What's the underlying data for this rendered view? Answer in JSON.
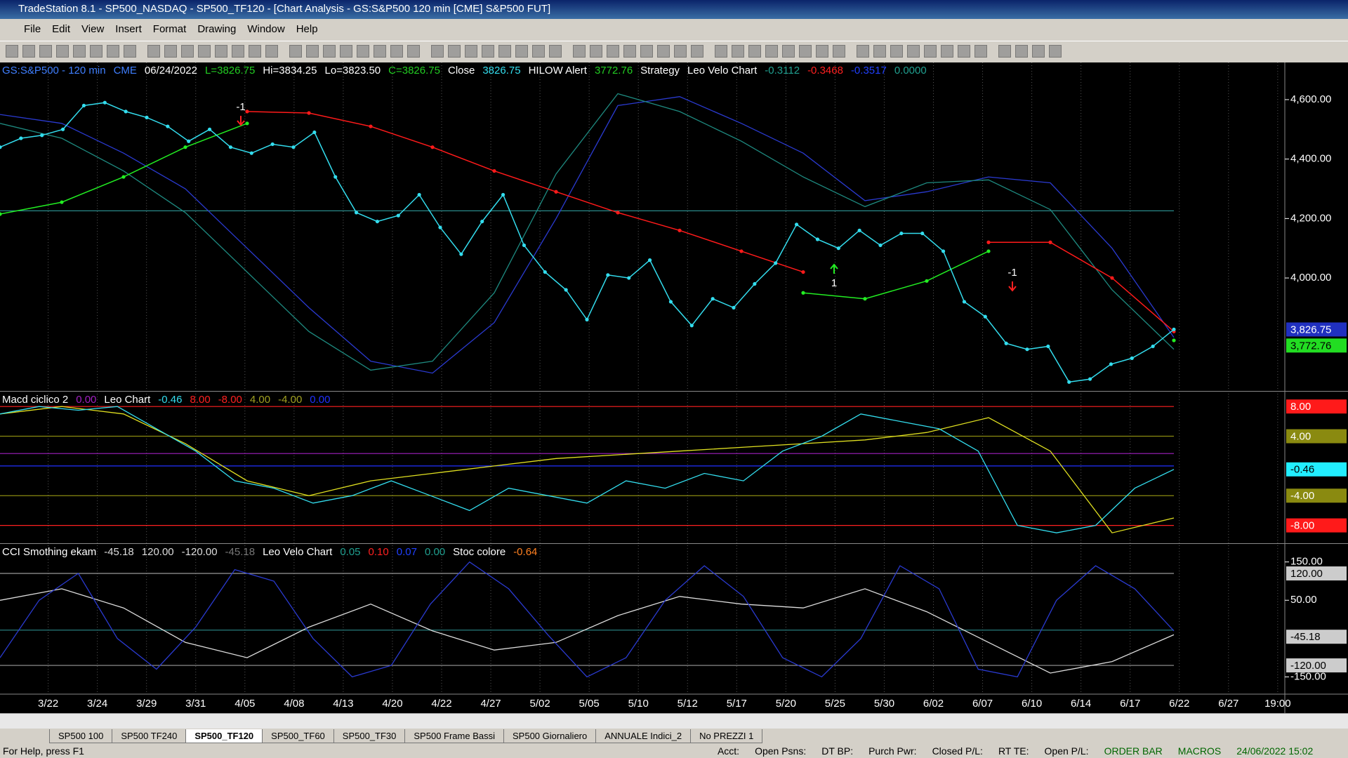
{
  "window": {
    "title": "TradeStation 8.1 - SP500_NASDAQ - SP500_TF120 - [Chart Analysis - GS:S&P500  120 min  [CME] S&P500 FUT]"
  },
  "menu": [
    "File",
    "Edit",
    "View",
    "Insert",
    "Format",
    "Drawing",
    "Window",
    "Help"
  ],
  "tabs": [
    "SP500 100",
    "SP500 TF240",
    "SP500_TF120",
    "SP500_TF60",
    "SP500_TF30",
    "SP500 Frame Bassi",
    "SP500 Giornaliero",
    "ANNUALE Indici_2",
    "No PREZZI 1"
  ],
  "active_tab": 2,
  "status": [
    "For Help, press F1",
    "Acct:",
    "Open Psns:",
    "DT BP:",
    "Purch Pwr:",
    "Closed P/L:",
    "RT TE:",
    "Open P/L:",
    "ORDER BAR",
    "MACROS",
    "24/06/2022 15:02"
  ],
  "chart_data": {
    "type": "line",
    "x_labels": [
      "3/22",
      "3/24",
      "3/29",
      "3/31",
      "4/05",
      "4/08",
      "4/13",
      "4/20",
      "4/22",
      "4/27",
      "5/02",
      "5/05",
      "5/10",
      "5/12",
      "5/17",
      "5/20",
      "5/25",
      "5/30",
      "6/02",
      "6/07",
      "6/10",
      "6/14",
      "6/17",
      "6/22",
      "6/27",
      "19:00"
    ],
    "panels": [
      {
        "header": [
          {
            "text": "GS:S&P500 - 120 min",
            "color": "#3f7fff"
          },
          {
            "text": "CME",
            "color": "#3f7fff"
          },
          {
            "text": "06/24/2022",
            "color": "#ffffff"
          },
          {
            "text": "L=3826.75",
            "color": "#22cc22"
          },
          {
            "text": "Hi=3834.25",
            "color": "#ffffff"
          },
          {
            "text": "Lo=3823.50",
            "color": "#ffffff"
          },
          {
            "text": "C=3826.75",
            "color": "#22cc22"
          },
          {
            "text": "Close",
            "color": "#ffffff"
          },
          {
            "text": "3826.75",
            "color": "#33ddee"
          },
          {
            "text": "HILOW Alert",
            "color": "#ffffff"
          },
          {
            "text": "3772.76",
            "color": "#22cc22"
          },
          {
            "text": "Strategy",
            "color": "#ffffff"
          },
          {
            "text": "Leo Velo Chart",
            "color": "#ffffff"
          },
          {
            "text": "-0.3112",
            "color": "#20a090"
          },
          {
            "text": "-0.3468",
            "color": "#ff2020"
          },
          {
            "text": "-0.3517",
            "color": "#2040ff"
          },
          {
            "text": "0.0000",
            "color": "#20a090"
          }
        ],
        "ylim": [
          3620,
          4725
        ],
        "yticks": [
          {
            "value": 4000,
            "label": "4,000.00"
          },
          {
            "value": 4200,
            "label": "4,200.00"
          },
          {
            "value": 4400,
            "label": "4,400.00"
          },
          {
            "value": 4600,
            "label": "4,600.00"
          }
        ],
        "markers": [
          {
            "value": 3826.75,
            "label": "3,826.75",
            "bg": "#2030c0",
            "fg": "#ffffff"
          },
          {
            "value": 3772.76,
            "label": "3,772.76",
            "bg": "#22dd22",
            "fg": "#000000"
          }
        ],
        "hlines": [
          {
            "value": 4226,
            "color": "#2a8a8a"
          }
        ],
        "series": [
          {
            "color": "#2a3ad0",
            "values": [
              4550,
              4520,
              4420,
              4300,
              4100,
              3900,
              3720,
              3680,
              3850,
              4200,
              4580,
              4610,
              4520,
              4420,
              4260,
              4290,
              4340,
              4320,
              4100,
              3800
            ]
          },
          {
            "color": "#1e8a80",
            "values": [
              4520,
              4470,
              4360,
              4220,
              4020,
              3820,
              3690,
              3720,
              3950,
              4350,
              4620,
              4560,
              4460,
              4340,
              4240,
              4320,
              4330,
              4230,
              3960,
              3760
            ]
          },
          {
            "color": "#ff1a1a",
            "dots": true,
            "values": [
              null,
              null,
              null,
              null,
              4560,
              4555,
              4510,
              4440,
              4360,
              4290,
              4220,
              4160,
              4090,
              4020,
              null,
              null,
              4120,
              4120,
              4000,
              3820
            ]
          },
          {
            "color": "#22ee22",
            "dots": true,
            "values": [
              4215,
              4255,
              4340,
              4440,
              4520,
              null,
              null,
              null,
              null,
              null,
              null,
              null,
              null,
              3950,
              3930,
              3990,
              4090,
              null,
              null,
              3790
            ]
          },
          {
            "color": "#33ddee",
            "dots": true,
            "values": [
              4440,
              4470,
              4480,
              4500,
              4580,
              4590,
              4560,
              4540,
              4510,
              4460,
              4500,
              4440,
              4420,
              4450,
              4440,
              4490,
              4340,
              4220,
              4190,
              4210,
              4280,
              4170,
              4080,
              4190,
              4280,
              4110,
              4020,
              3960,
              3860,
              4010,
              4000,
              4060,
              3920,
              3840,
              3930,
              3900,
              3980,
              4050,
              4180,
              4130,
              4100,
              4160,
              4110,
              4150,
              4150,
              4090,
              3920,
              3870,
              3780,
              3760,
              3770,
              3650,
              3660,
              3710,
              3730,
              3770,
              3827
            ]
          }
        ],
        "annotations": [
          {
            "text": "-1",
            "color": "#ffffff"
          },
          {
            "text": "1",
            "color": "#ffffff"
          },
          {
            "text": "-1",
            "color": "#ffffff"
          }
        ]
      },
      {
        "header": [
          {
            "text": "Macd ciclico 2",
            "color": "#ffffff"
          },
          {
            "text": "0.00",
            "color": "#a020c0"
          },
          {
            "text": "Leo Chart",
            "color": "#ffffff"
          },
          {
            "text": "-0.46",
            "color": "#33ddee"
          },
          {
            "text": "8.00",
            "color": "#ff2020"
          },
          {
            "text": "-8.00",
            "color": "#ff2020"
          },
          {
            "text": "4.00",
            "color": "#a0a020"
          },
          {
            "text": "-4.00",
            "color": "#a0a020"
          },
          {
            "text": "0.00",
            "color": "#2030ff"
          }
        ],
        "ylim": [
          -10.4,
          10
        ],
        "yticks": [],
        "markers": [
          {
            "value": 8,
            "label": "8.00",
            "bg": "#ff1a1a",
            "fg": "#ffffff"
          },
          {
            "value": 4,
            "label": "4.00",
            "bg": "#8a8a10",
            "fg": "#ffffff"
          },
          {
            "value": -0.46,
            "label": "-0.46",
            "bg": "#22eeff",
            "fg": "#000000"
          },
          {
            "value": -4,
            "label": "-4.00",
            "bg": "#8a8a10",
            "fg": "#ffffff"
          },
          {
            "value": -8,
            "label": "-8.00",
            "bg": "#ff1a1a",
            "fg": "#ffffff"
          }
        ],
        "hlines": [
          {
            "value": 8,
            "color": "#ff2020"
          },
          {
            "value": 4,
            "color": "#8a8a10"
          },
          {
            "value": 1.67,
            "color": "#a020c0"
          },
          {
            "value": 0,
            "color": "#2030ff"
          },
          {
            "value": -4,
            "color": "#8a8a10"
          },
          {
            "value": -8,
            "color": "#ff2020"
          }
        ],
        "series": [
          {
            "color": "#e0e020",
            "values": [
              7,
              8,
              7,
              3,
              -2,
              -4,
              -2,
              -1,
              0,
              1,
              1.5,
              2,
              2.5,
              3,
              3.5,
              4.5,
              6.5,
              2,
              -9,
              -7
            ]
          },
          {
            "color": "#33ddee",
            "values": [
              7,
              8,
              7.5,
              8,
              5,
              2,
              -2,
              -3,
              -5,
              -4,
              -2,
              -4,
              -6,
              -3,
              -4,
              -5,
              -2,
              -3,
              -1,
              -2,
              2,
              4,
              7,
              6,
              5,
              2,
              -8,
              -9,
              -8,
              -3,
              -0.46
            ]
          }
        ]
      },
      {
        "header": [
          {
            "text": "CCI Smothing ekam",
            "color": "#ffffff"
          },
          {
            "text": "-45.18",
            "color": "#dddddd"
          },
          {
            "text": "120.00",
            "color": "#dddddd"
          },
          {
            "text": "-120.00",
            "color": "#dddddd"
          },
          {
            "text": "-45.18",
            "color": "#777777"
          },
          {
            "text": "Leo Velo Chart",
            "color": "#ffffff"
          },
          {
            "text": "0.05",
            "color": "#20a090"
          },
          {
            "text": "0.10",
            "color": "#ff2020"
          },
          {
            "text": "0.07",
            "color": "#2040ff"
          },
          {
            "text": "0.00",
            "color": "#20a090"
          },
          {
            "text": "Stoc colore",
            "color": "#ffffff"
          },
          {
            "text": "-0.64",
            "color": "#ff8020"
          }
        ],
        "ylim": [
          -195,
          197
        ],
        "yticks": [
          {
            "value": 150,
            "label": "150.00"
          },
          {
            "value": 50,
            "label": "50.00"
          },
          {
            "value": -150,
            "label": "-150.00"
          }
        ],
        "markers": [
          {
            "value": 120,
            "label": "120.00",
            "bg": "#cccccc",
            "fg": "#000000"
          },
          {
            "value": -45.18,
            "label": "-45.18",
            "bg": "#cccccc",
            "fg": "#000000"
          },
          {
            "value": -120,
            "label": "-120.00",
            "bg": "#cccccc",
            "fg": "#000000"
          }
        ],
        "hlines": [
          {
            "value": 120,
            "color": "#999999"
          },
          {
            "value": -28,
            "color": "#2a8a8a"
          },
          {
            "value": -120,
            "color": "#999999"
          }
        ],
        "series": [
          {
            "color": "#dddddd",
            "values": [
              50,
              80,
              30,
              -60,
              -100,
              -20,
              40,
              -30,
              -80,
              -60,
              10,
              60,
              40,
              30,
              80,
              20,
              -60,
              -140,
              -110,
              -40
            ]
          },
          {
            "color": "#2a3ad0",
            "values": [
              -100,
              50,
              120,
              -50,
              -130,
              -20,
              130,
              100,
              -50,
              -150,
              -120,
              40,
              150,
              80,
              -40,
              -150,
              -100,
              50,
              140,
              60,
              -100,
              -150,
              -50,
              140,
              80,
              -130,
              -150,
              50,
              140,
              80,
              -30
            ]
          }
        ]
      }
    ]
  }
}
